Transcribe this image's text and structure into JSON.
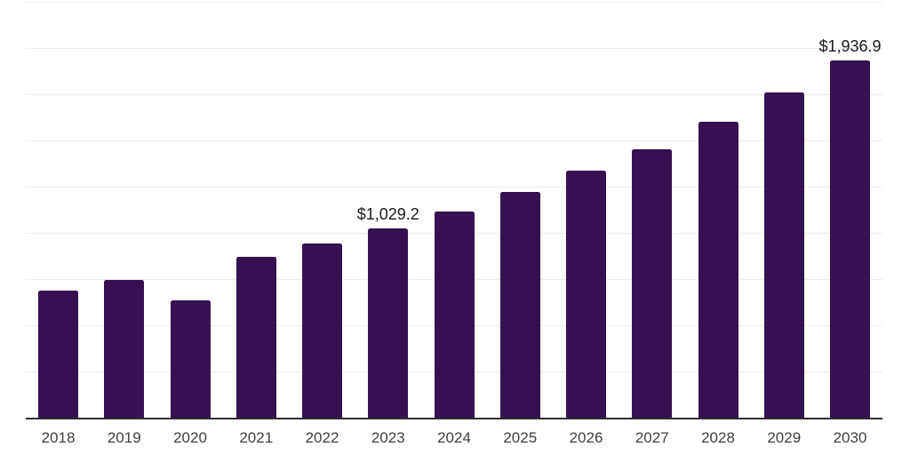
{
  "chart_data": {
    "type": "bar",
    "title": "",
    "xlabel": "",
    "ylabel": "",
    "categories": [
      "2018",
      "2019",
      "2020",
      "2021",
      "2022",
      "2023",
      "2024",
      "2025",
      "2026",
      "2027",
      "2028",
      "2029",
      "2030"
    ],
    "values": [
      693,
      748,
      640,
      877,
      949,
      1029.2,
      1121,
      1225,
      1340,
      1459,
      1608,
      1765,
      1936.9
    ],
    "data_labels": [
      "",
      "",
      "",
      "",
      "",
      "$1,029.2",
      "",
      "",
      "",
      "",
      "",
      "",
      "$1,936.9"
    ],
    "ylim": [
      0,
      2250
    ],
    "grid_interval": 250,
    "grid": true,
    "legend": "none"
  },
  "colors": {
    "bar": "#351151",
    "gridline": "#ededed",
    "axis_line": "#2d2d2d",
    "tick_label": "#3f3f3f",
    "data_label": "#191919",
    "background": "#ffffff"
  }
}
